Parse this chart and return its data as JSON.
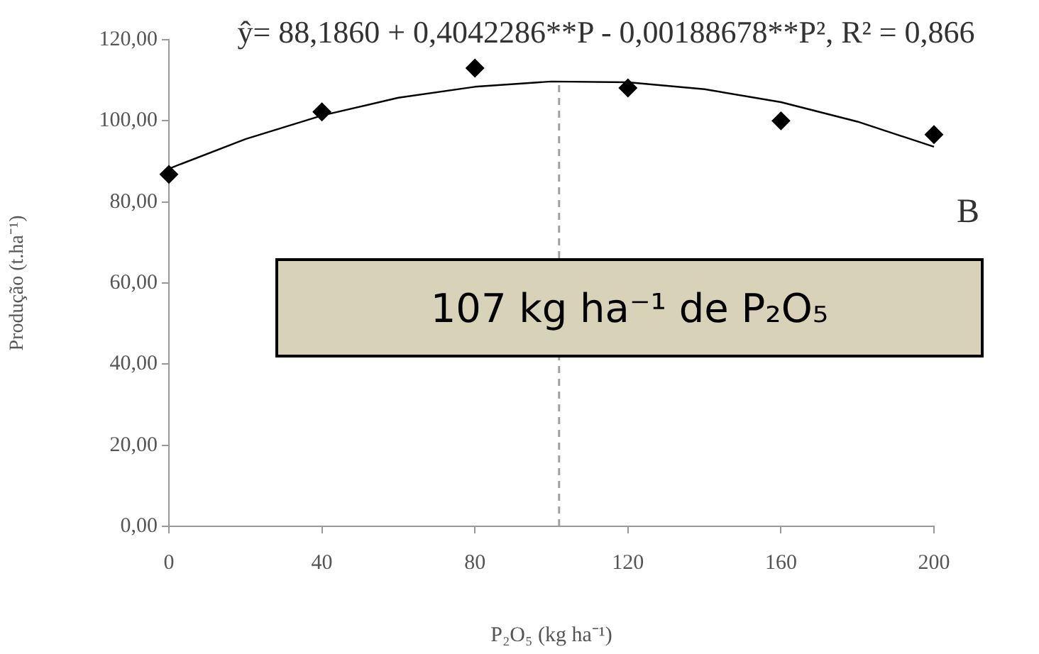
{
  "chart_data": {
    "type": "scatter",
    "title": "ŷ= 88,1860 + 0,4042286**P - 0,00188678**P², R² = 0,866",
    "xlabel": "P₂O₅ (kg ha⁻¹)",
    "ylabel": "Produção (t.ha⁻¹)",
    "xlim": [
      0,
      200
    ],
    "xticks": [
      0,
      40,
      80,
      120,
      160,
      200
    ],
    "ylim": [
      0,
      120
    ],
    "yticks": [
      {
        "value": 0,
        "label": "0,00"
      },
      {
        "value": 20,
        "label": "20,00"
      },
      {
        "value": 40,
        "label": "40,00"
      },
      {
        "value": 60,
        "label": "60,00"
      },
      {
        "value": 80,
        "label": "80,00"
      },
      {
        "value": 100,
        "label": "100,00"
      },
      {
        "value": 120,
        "label": "120,00"
      }
    ],
    "series": [
      {
        "color": "#000000",
        "marker": "diamond",
        "x": [
          0,
          40,
          80,
          120,
          160,
          200
        ],
        "values": [
          86.8,
          102.2,
          113,
          108.1,
          100,
          96.6
        ]
      },
      {
        "type": "line",
        "color": "#000000",
        "marker": "none",
        "line_style": "solid",
        "x": [
          0,
          20,
          40,
          60,
          80,
          100,
          120,
          140,
          160,
          180,
          200
        ],
        "values": [
          88.2,
          95.5,
          101.3,
          105.7,
          108.4,
          109.7,
          109.5,
          107.8,
          104.6,
          99.8,
          93.6
        ]
      }
    ],
    "ref_lines": [
      {
        "axis": "x",
        "value": 102,
        "color": "#a0a0a0",
        "line_style": "dashed"
      }
    ],
    "annotations": [
      "B",
      "107 kg ha⁻¹ de P₂O₅"
    ],
    "grid": false,
    "legend": false
  }
}
